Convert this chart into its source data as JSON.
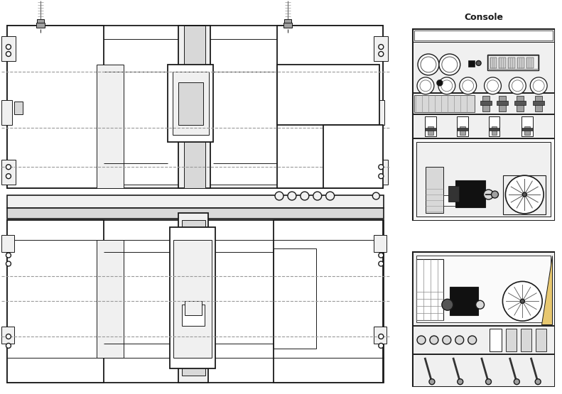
{
  "bg_color": "#ffffff",
  "line_color": "#1a1a1a",
  "dashed_color": "#999999",
  "title": "Console",
  "fig_bg": "#ffffff",
  "lw_main": 1.3,
  "lw_thin": 0.7,
  "lw_thick": 2.0
}
